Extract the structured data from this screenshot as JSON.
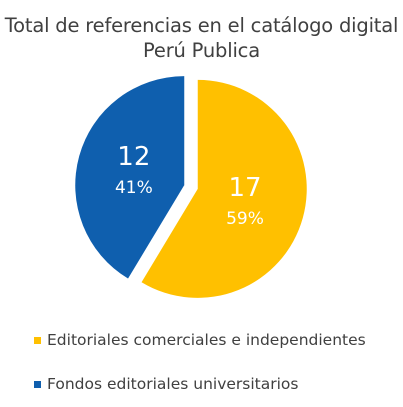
{
  "chart_data": {
    "type": "pie",
    "title": [
      "Total de referencias en el catálogo digital",
      "Perú Publica"
    ],
    "categories": [
      "Editoriales comerciales e independientes",
      "Fondos editoriales universitarios"
    ],
    "values": [
      17,
      12
    ],
    "percent_labels": [
      "59%",
      "41%"
    ],
    "value_labels": [
      "17",
      "12"
    ],
    "colors": [
      "#FFC000",
      "#0F5FAE"
    ],
    "legend_placement": "bottom-left"
  }
}
